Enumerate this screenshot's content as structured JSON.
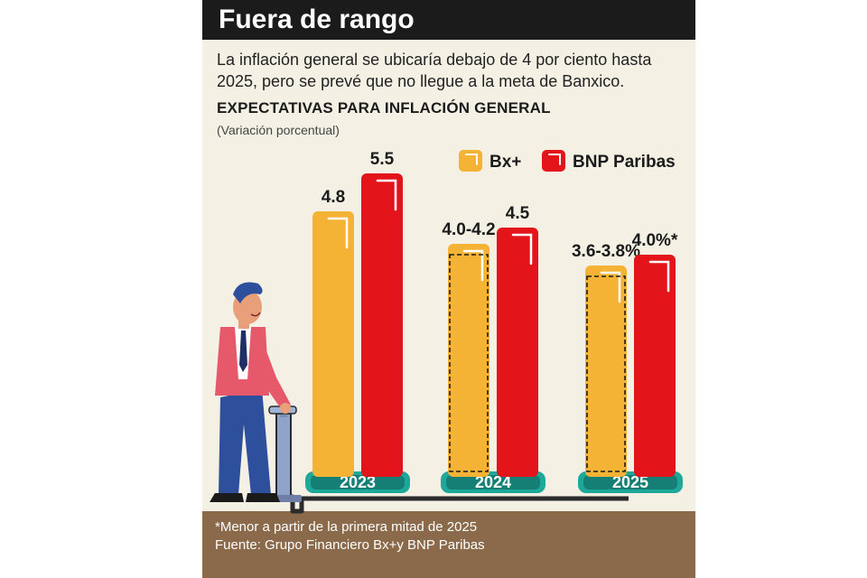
{
  "header": {
    "title": "Fuera de rango",
    "subtitle": "La inflación general se ubicaría debajo de 4 por ciento hasta 2025, pero se prevé que no llegue a la meta de Banxico."
  },
  "chart_data": {
    "type": "bar",
    "title": "EXPECTATIVAS PARA INFLACIÓN GENERAL",
    "unit": "(Variación porcentual)",
    "categories": [
      "2023",
      "2024",
      "2025"
    ],
    "series": [
      {
        "name": "Bx+",
        "color": "#f5b335",
        "values": [
          4.8,
          4.2,
          3.8
        ],
        "range_low": [
          null,
          4.0,
          3.6
        ],
        "labels": [
          "4.8",
          "4.0-4.2",
          "3.6-3.8%"
        ]
      },
      {
        "name": "BNP Paribas",
        "color": "#e3151b",
        "values": [
          5.5,
          4.5,
          4.0
        ],
        "labels": [
          "5.5",
          "4.5",
          "4.0%*"
        ]
      }
    ],
    "legend": "top-right",
    "grid": false
  },
  "notes": {
    "footnote": "*Menor a partir de la primera mitad de 2025",
    "source": "Fuente: Grupo Financiero Bx+y BNP Paribas"
  }
}
